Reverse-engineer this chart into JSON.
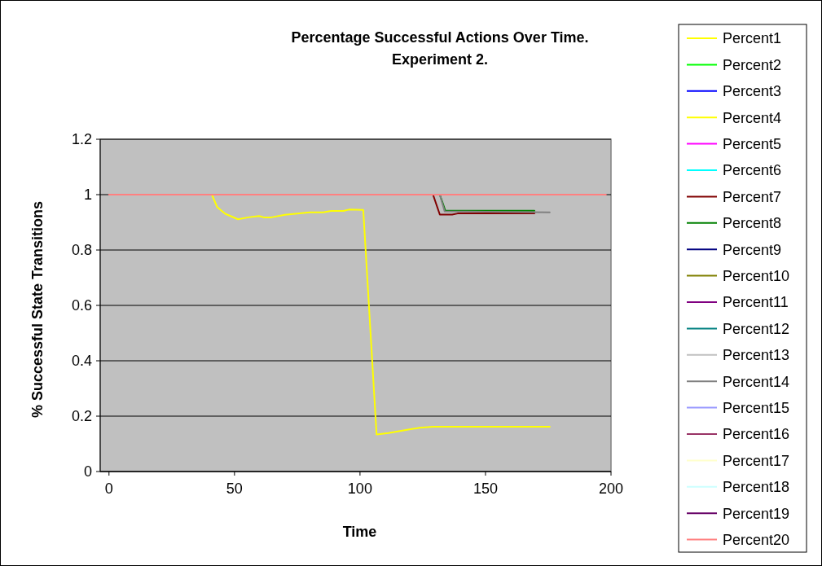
{
  "chart_data": {
    "type": "line",
    "title": "Percentage Successful Actions Over Time.\nExperiment 2.",
    "xlabel": "Time",
    "ylabel": "% Successful State Transitions",
    "xlim": [
      -3.5,
      200
    ],
    "xticks": [
      0,
      50,
      100,
      150,
      200
    ],
    "ylim": [
      0,
      1.2
    ],
    "yticks": [
      0,
      0.2,
      0.4,
      0.6,
      0.8,
      1,
      1.2
    ],
    "grid": "y",
    "legend": "right",
    "marker": "none",
    "line_style": "solid",
    "series": [
      {
        "name": "Percent1",
        "color": "#ffff00",
        "x": [
          41,
          43.1,
          46.3,
          51.4,
          55.5,
          59.8,
          61.7,
          64.7,
          70.1,
          79.9,
          85.3,
          88.5,
          93.4,
          95.6,
          101.3,
          106.6,
          111.3,
          117.8,
          123.7,
          129.1,
          175.6
        ],
        "values": [
          1,
          0.955,
          0.931,
          0.911,
          0.918,
          0.923,
          0.918,
          0.918,
          0.927,
          0.936,
          0.936,
          0.941,
          0.941,
          0.946,
          0.945,
          0.134,
          0.139,
          0.149,
          0.158,
          0.162,
          0.162
        ]
      },
      {
        "name": "Percent2",
        "color": "#00ff00"
      },
      {
        "name": "Percent3",
        "color": "#0000ff"
      },
      {
        "name": "Percent4",
        "color": "#ffff00"
      },
      {
        "name": "Percent5",
        "color": "#ff00ff"
      },
      {
        "name": "Percent6",
        "color": "#00ffff"
      },
      {
        "name": "Percent7",
        "color": "#800000",
        "x": [
          129.1,
          131.8,
          136.7,
          138.9,
          169.5
        ],
        "values": [
          1,
          0.928,
          0.928,
          0.932,
          0.932
        ]
      },
      {
        "name": "Percent8",
        "color": "#008000",
        "x": [
          131.8,
          134,
          169.5
        ],
        "values": [
          1,
          0.942,
          0.942
        ]
      },
      {
        "name": "Percent9",
        "color": "#000080"
      },
      {
        "name": "Percent10",
        "color": "#808000"
      },
      {
        "name": "Percent11",
        "color": "#800080"
      },
      {
        "name": "Percent12",
        "color": "#008080"
      },
      {
        "name": "Percent13",
        "color": "#c0c0c0"
      },
      {
        "name": "Percent14",
        "color": "#808080",
        "x": [
          131.8,
          133.7,
          175.6
        ],
        "values": [
          1,
          0.94,
          0.936
        ]
      },
      {
        "name": "Percent15",
        "color": "#9999ff"
      },
      {
        "name": "Percent16",
        "color": "#993366"
      },
      {
        "name": "Percent17",
        "color": "#ffffcc"
      },
      {
        "name": "Percent18",
        "color": "#ccffff"
      },
      {
        "name": "Percent19",
        "color": "#660066"
      },
      {
        "name": "Percent20",
        "color": "#ff8080",
        "x": [
          0,
          198
        ],
        "values": [
          1,
          1
        ]
      }
    ]
  }
}
